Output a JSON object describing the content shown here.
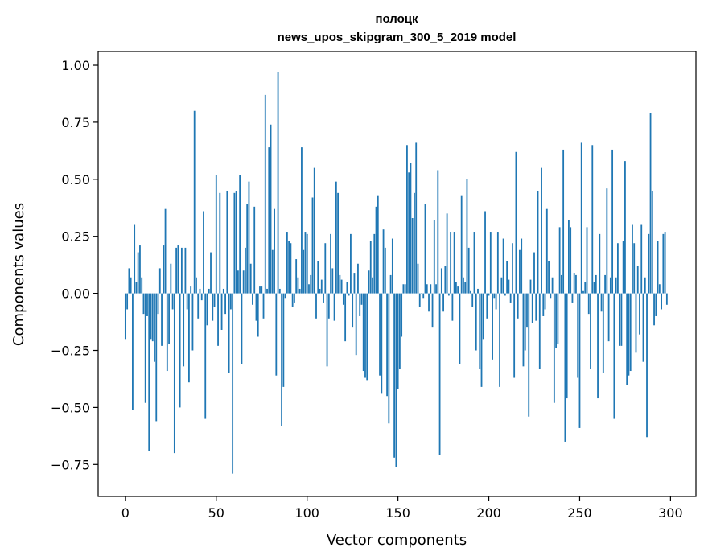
{
  "chart_data": {
    "type": "bar",
    "title_line1": "полоцк",
    "title_line2": "news_upos_skipgram_300_5_2019 model",
    "xlabel": "Vector components",
    "ylabel": "Components values",
    "xlim": [
      -15,
      314
    ],
    "ylim": [
      -0.89,
      1.06
    ],
    "xticks": [
      0,
      50,
      100,
      150,
      200,
      250,
      300
    ],
    "xtick_labels": [
      "0",
      "50",
      "100",
      "150",
      "200",
      "250",
      "300"
    ],
    "yticks": [
      -0.75,
      -0.5,
      -0.25,
      0.0,
      0.25,
      0.5,
      0.75,
      1.0
    ],
    "ytick_labels": [
      "−0.75",
      "−0.50",
      "−0.25",
      "0.00",
      "0.25",
      "0.50",
      "0.75",
      "1.00"
    ],
    "bar_color": "#1f77b4",
    "values": [
      -0.2,
      -0.07,
      0.11,
      0.07,
      -0.51,
      0.3,
      0.05,
      0.18,
      0.21,
      0.07,
      -0.09,
      -0.48,
      -0.1,
      -0.69,
      -0.2,
      -0.21,
      -0.3,
      -0.56,
      -0.09,
      0.11,
      -0.23,
      0.21,
      0.37,
      -0.34,
      -0.22,
      0.13,
      -0.07,
      -0.7,
      0.2,
      0.21,
      -0.5,
      0.2,
      -0.32,
      0.2,
      -0.07,
      -0.39,
      0.03,
      -0.25,
      0.8,
      0.07,
      -0.11,
      0.02,
      -0.03,
      0.36,
      -0.55,
      -0.14,
      0.02,
      0.18,
      -0.12,
      -0.06,
      0.52,
      -0.23,
      0.44,
      -0.16,
      0.02,
      -0.09,
      0.45,
      -0.35,
      -0.07,
      -0.79,
      0.44,
      0.45,
      0.1,
      0.52,
      -0.31,
      0.1,
      0.2,
      0.39,
      0.49,
      0.13,
      -0.05,
      0.38,
      -0.12,
      -0.19,
      0.03,
      0.03,
      -0.11,
      0.87,
      0.02,
      0.64,
      0.74,
      0.19,
      0.37,
      -0.36,
      0.97,
      0.02,
      -0.58,
      -0.41,
      -0.02,
      0.27,
      0.23,
      0.22,
      -0.06,
      -0.04,
      0.15,
      0.07,
      0.02,
      0.64,
      0.19,
      0.27,
      0.26,
      0.04,
      0.08,
      0.42,
      0.55,
      -0.11,
      0.14,
      0.02,
      0.06,
      -0.04,
      0.22,
      -0.32,
      -0.11,
      0.26,
      0.11,
      -0.12,
      0.49,
      0.44,
      0.08,
      0.06,
      -0.05,
      -0.21,
      0.05,
      -0.01,
      0.26,
      -0.15,
      0.09,
      -0.27,
      0.13,
      -0.1,
      -0.05,
      -0.34,
      -0.37,
      -0.38,
      0.1,
      0.23,
      0.07,
      0.26,
      0.38,
      0.43,
      -0.36,
      -0.44,
      0.28,
      0.2,
      -0.45,
      -0.57,
      0.08,
      0.24,
      -0.72,
      -0.76,
      -0.42,
      -0.33,
      -0.19,
      0.04,
      0.04,
      0.65,
      0.53,
      0.57,
      0.33,
      0.44,
      0.66,
      0.13,
      -0.06,
      0.0,
      -0.02,
      0.39,
      0.04,
      -0.08,
      0.04,
      -0.15,
      0.32,
      0.04,
      0.54,
      -0.71,
      0.11,
      -0.08,
      0.12,
      0.35,
      -0.01,
      0.27,
      -0.12,
      0.27,
      0.05,
      0.03,
      -0.31,
      0.43,
      0.07,
      0.05,
      0.5,
      0.2,
      0.01,
      -0.06,
      0.27,
      -0.25,
      0.02,
      -0.33,
      -0.41,
      -0.2,
      0.36,
      -0.11,
      -0.01,
      0.27,
      -0.29,
      -0.02,
      -0.07,
      0.27,
      -0.41,
      0.07,
      0.24,
      -0.01,
      0.14,
      0.06,
      -0.04,
      0.22,
      -0.37,
      0.62,
      -0.11,
      0.19,
      0.24,
      -0.32,
      -0.25,
      -0.15,
      -0.54,
      0.06,
      -0.13,
      0.18,
      -0.12,
      0.45,
      -0.33,
      0.55,
      -0.1,
      -0.07,
      0.37,
      0.14,
      -0.02,
      0.07,
      -0.48,
      -0.24,
      -0.22,
      0.29,
      0.08,
      0.63,
      -0.65,
      -0.46,
      0.32,
      0.29,
      -0.04,
      0.09,
      0.08,
      -0.37,
      -0.59,
      0.66,
      0.01,
      0.05,
      0.29,
      -0.09,
      -0.33,
      0.65,
      0.05,
      0.08,
      -0.46,
      0.26,
      -0.08,
      -0.35,
      0.08,
      0.46,
      -0.21,
      0.07,
      0.63,
      -0.55,
      0.07,
      0.22,
      -0.23,
      -0.23,
      0.23,
      0.58,
      -0.4,
      -0.36,
      -0.34,
      0.3,
      0.22,
      -0.26,
      0.12,
      -0.18,
      0.3,
      -0.3,
      0.07,
      -0.63,
      0.26,
      0.79,
      0.45,
      -0.14,
      -0.1,
      0.23,
      0.04,
      -0.07,
      0.26,
      0.27,
      -0.05
    ]
  }
}
